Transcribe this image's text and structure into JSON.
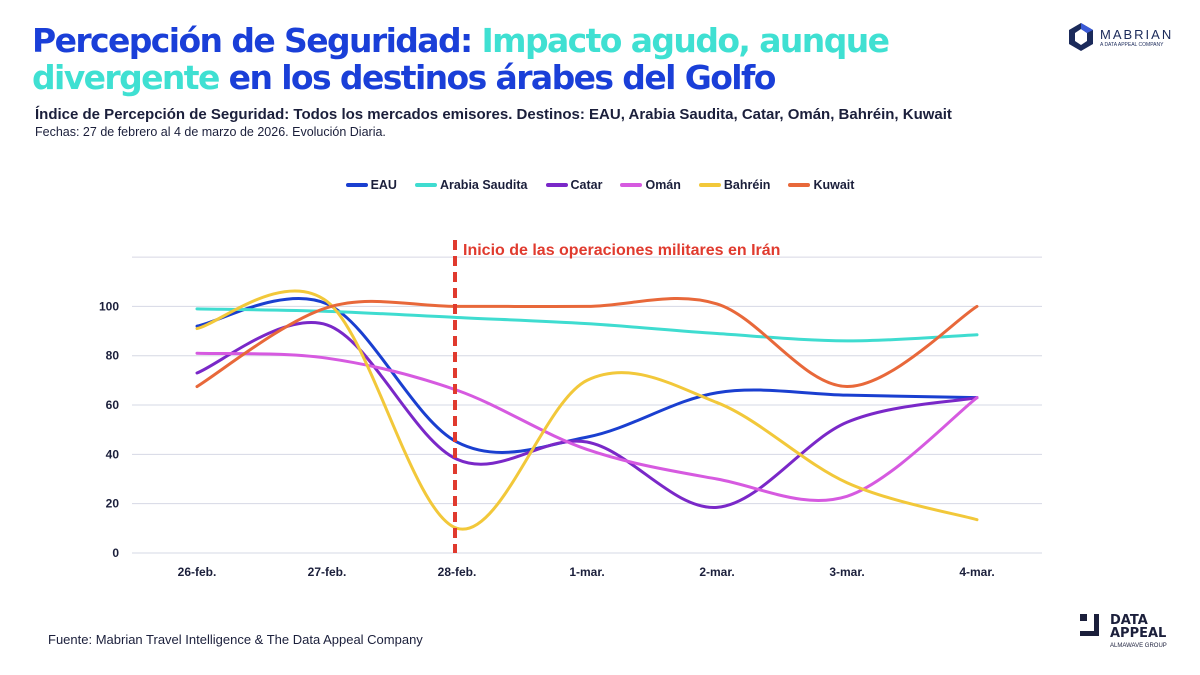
{
  "header": {
    "title_parts": [
      {
        "text": "Percepción de Seguridad: ",
        "color": "#1a3fd8"
      },
      {
        "text": "Impacto agudo, aunque divergente ",
        "color": "#3fe0d2"
      },
      {
        "text": "en los destinos árabes del Golfo",
        "color": "#1a3fd8"
      }
    ],
    "subtitle": "Índice de Percepción de Seguridad: Todos los mercados emisores. Destinos: EAU, Arabia Saudita, Catar, Omán, Bahréin, Kuwait",
    "dates": "Fechas: 27 de febrero al 4 de marzo de 2026. Evolución Diaria."
  },
  "logos": {
    "mabrian": {
      "name": "MABRIAN",
      "tagline": "A DATA APPEAL COMPANY"
    },
    "data_appeal": {
      "line1": "DATA",
      "line2": "APPEAL",
      "tagline": "ALMAWAVE GROUP"
    }
  },
  "footer": {
    "source": "Fuente: Mabrian Travel Intelligence & The Data Appeal Company"
  },
  "chart_data": {
    "type": "line",
    "smooth": true,
    "categories": [
      "26-feb.",
      "27-feb.",
      "28-feb.",
      "1-mar.",
      "2-mar.",
      "3-mar.",
      "4-mar."
    ],
    "ylim": [
      0,
      120
    ],
    "yticks": [
      0,
      20,
      40,
      60,
      80,
      100
    ],
    "grid": true,
    "legend_position": "top",
    "annotation": {
      "text": "Inicio de las operaciones militares en Irán",
      "category": "28-feb.",
      "color": "#e03a2e"
    },
    "series": [
      {
        "name": "EAU",
        "color": "#1a3fd0",
        "values": [
          92,
          101,
          45,
          47,
          65,
          64,
          63
        ]
      },
      {
        "name": "Arabia Saudita",
        "color": "#3fdcd0",
        "values": [
          99,
          98,
          95.5,
          93,
          89,
          86,
          88.5
        ]
      },
      {
        "name": "Catar",
        "color": "#7a28c8",
        "values": [
          73,
          92.5,
          38,
          45,
          18.5,
          53,
          63
        ]
      },
      {
        "name": "Omán",
        "color": "#d65ae0",
        "values": [
          81,
          79,
          66,
          42,
          30,
          23,
          63
        ]
      },
      {
        "name": "Bahréin",
        "color": "#f2c83a",
        "values": [
          91,
          102,
          10,
          70,
          61,
          28.5,
          13.5
        ]
      },
      {
        "name": "Kuwait",
        "color": "#e8683a",
        "values": [
          67.5,
          99.5,
          100,
          100,
          101,
          67.5,
          100
        ]
      }
    ]
  }
}
